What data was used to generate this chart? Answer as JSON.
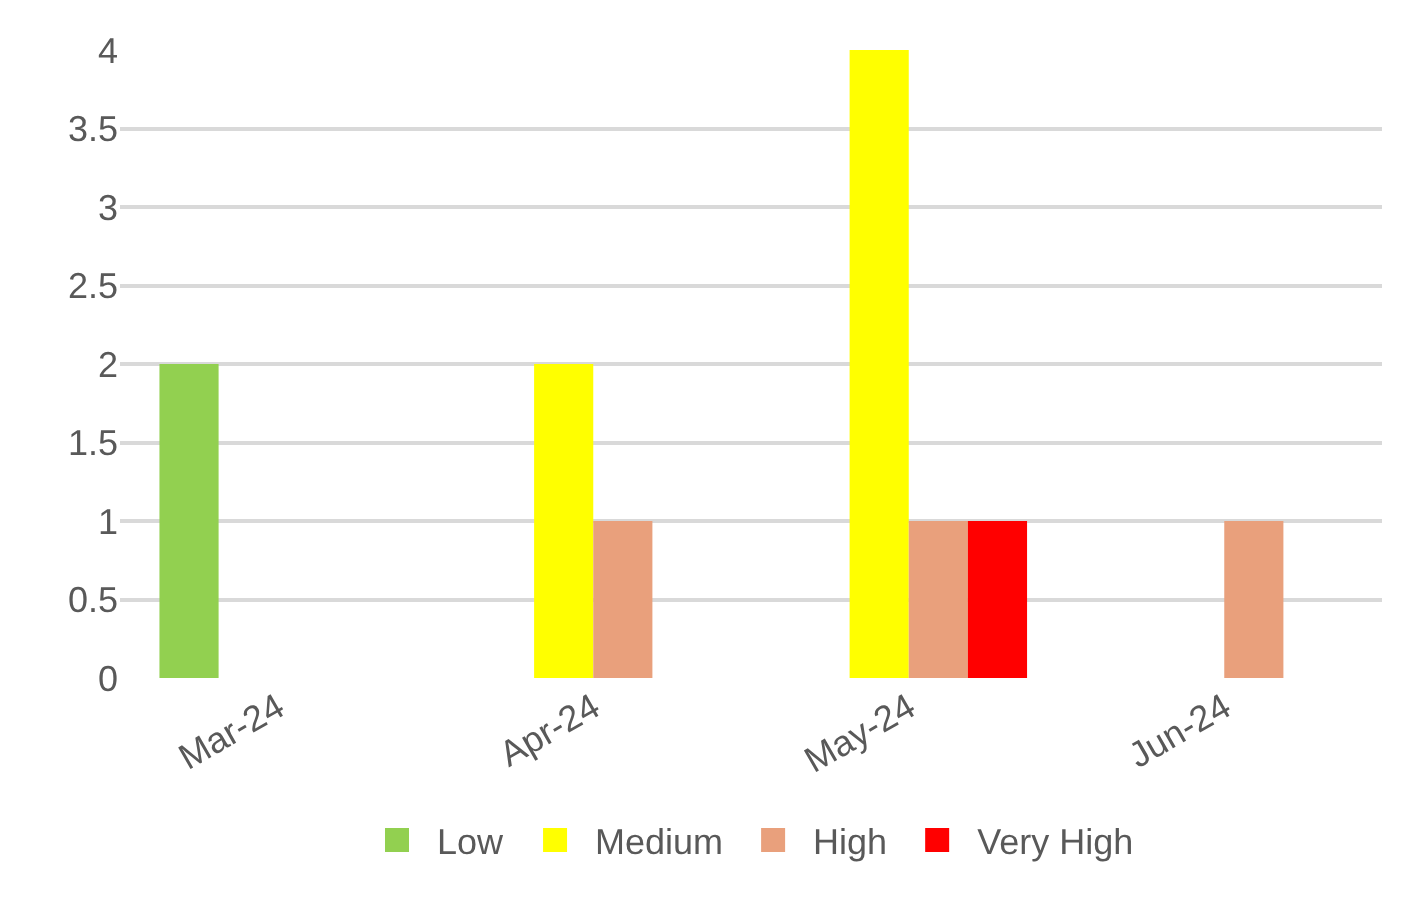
{
  "chart_data": {
    "type": "bar",
    "categories": [
      "Mar-24",
      "Apr-24",
      "May-24",
      "Jun-24"
    ],
    "series": [
      {
        "name": "Low",
        "color": "#92d050",
        "values": [
          2,
          null,
          null,
          null
        ]
      },
      {
        "name": "Medium",
        "color": "#ffff00",
        "values": [
          null,
          2,
          4,
          null
        ]
      },
      {
        "name": "High",
        "color": "#e9a07c",
        "values": [
          null,
          1,
          1,
          1
        ]
      },
      {
        "name": "Very High",
        "color": "#ff0000",
        "values": [
          null,
          null,
          1,
          null
        ]
      }
    ],
    "ylim": [
      0,
      4
    ],
    "yticks": [
      0,
      0.5,
      1,
      1.5,
      2,
      2.5,
      3,
      3.5,
      4
    ],
    "grid": "y",
    "legend": "bottom"
  }
}
